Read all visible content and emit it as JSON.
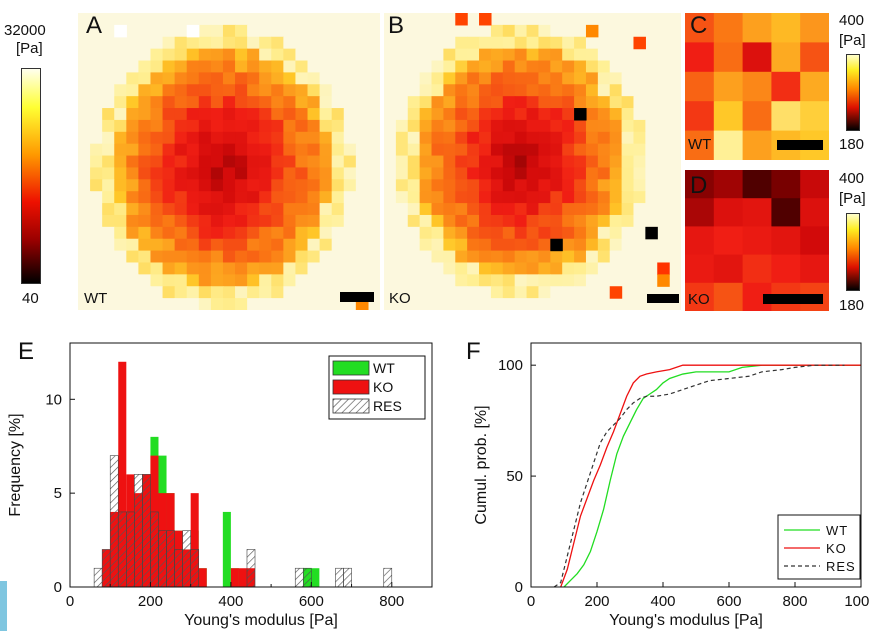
{
  "colorbar_main": {
    "top_label": "32000",
    "unit": "[Pa]",
    "bottom_label": "40"
  },
  "colorbar_small_c": {
    "top_label": "400",
    "unit": "[Pa]",
    "bottom_label": "180"
  },
  "colorbar_small_d": {
    "top_label": "400",
    "unit": "[Pa]",
    "bottom_label": "180"
  },
  "panels": {
    "a": {
      "letter": "A",
      "tag": "WT"
    },
    "b": {
      "letter": "B",
      "tag": "KO"
    },
    "c": {
      "letter": "C",
      "tag": "WT"
    },
    "d": {
      "letter": "D",
      "tag": "KO"
    },
    "e": {
      "letter": "E"
    },
    "f": {
      "letter": "F"
    }
  },
  "colors": {
    "wt": "#22dd22",
    "ko": "#ee1111",
    "res_hatch": "#555555"
  },
  "chart_data": [
    {
      "type": "bar",
      "panel": "E",
      "xlabel": "Young's modulus [Pa]",
      "ylabel": "Frequency [%]",
      "xlim": [
        0,
        900
      ],
      "ylim": [
        0,
        13
      ],
      "xticks": [
        0,
        200,
        400,
        600,
        800
      ],
      "yticks": [
        0,
        5,
        10
      ],
      "bin_width": 20,
      "legend": "top-right",
      "bin_centers": [
        70,
        90,
        110,
        130,
        150,
        170,
        190,
        210,
        230,
        250,
        270,
        290,
        310,
        330,
        350,
        370,
        390,
        410,
        430,
        450,
        470,
        490,
        510,
        530,
        550,
        570,
        590,
        610,
        630,
        650,
        670,
        690,
        710,
        730,
        750,
        770,
        790,
        810
      ],
      "series": [
        {
          "name": "WT",
          "values": [
            0,
            1,
            3,
            2,
            3,
            4,
            5,
            8,
            7,
            5,
            3,
            2,
            3,
            1,
            0,
            0,
            4,
            1,
            0,
            0,
            0,
            0,
            0,
            0,
            0,
            0,
            1,
            1,
            0,
            0,
            0,
            0,
            0,
            0,
            0,
            0,
            0,
            0
          ]
        },
        {
          "name": "KO",
          "values": [
            0,
            2,
            4,
            12,
            6,
            5,
            6,
            7,
            5,
            5,
            3,
            2,
            5,
            1,
            0,
            0,
            0,
            1,
            1,
            1,
            0,
            0,
            0,
            0,
            0,
            0,
            0,
            0,
            0,
            0,
            0,
            0,
            0,
            0,
            0,
            0,
            0,
            0
          ]
        },
        {
          "name": "RES",
          "values": [
            1,
            2,
            7,
            4,
            4,
            6,
            6,
            4,
            3,
            3,
            2,
            3,
            2,
            0,
            0,
            0,
            0,
            0,
            0,
            2,
            0,
            0,
            0,
            0,
            0,
            1,
            1,
            0,
            0,
            0,
            1,
            1,
            0,
            0,
            0,
            0,
            1,
            0
          ]
        }
      ]
    },
    {
      "type": "line",
      "panel": "F",
      "xlabel": "Young's modulus [Pa]",
      "ylabel": "Cumul. prob. [%]",
      "xlim": [
        0,
        1000
      ],
      "ylim": [
        0,
        110
      ],
      "xticks": [
        0,
        200,
        400,
        600,
        800,
        1000
      ],
      "yticks": [
        0,
        50,
        100
      ],
      "legend": "bottom-right",
      "series": [
        {
          "name": "WT",
          "x": [
            100,
            120,
            140,
            160,
            180,
            200,
            220,
            240,
            260,
            280,
            300,
            320,
            340,
            360,
            380,
            400,
            420,
            460,
            500,
            560,
            600,
            640,
            700,
            1000
          ],
          "y": [
            0,
            3,
            6,
            10,
            16,
            25,
            35,
            48,
            60,
            68,
            74,
            80,
            85,
            87,
            89,
            92,
            94,
            96,
            97,
            97,
            97,
            99,
            100,
            100
          ]
        },
        {
          "name": "KO",
          "x": [
            90,
            110,
            130,
            150,
            170,
            190,
            210,
            230,
            250,
            270,
            290,
            310,
            330,
            350,
            380,
            420,
            440,
            460,
            480,
            1000
          ],
          "y": [
            0,
            8,
            20,
            32,
            40,
            48,
            55,
            63,
            70,
            78,
            86,
            92,
            95,
            96,
            97,
            98,
            99,
            100,
            100,
            100
          ]
        },
        {
          "name": "RES",
          "x": [
            70,
            90,
            110,
            130,
            150,
            170,
            190,
            210,
            230,
            250,
            270,
            290,
            310,
            330,
            350,
            380,
            420,
            460,
            500,
            540,
            600,
            660,
            700,
            760,
            800,
            860,
            900,
            950
          ],
          "y": [
            0,
            2,
            14,
            26,
            38,
            47,
            56,
            65,
            70,
            73,
            76,
            80,
            83,
            85,
            86,
            86,
            87,
            89,
            91,
            93,
            94,
            95,
            97,
            98,
            99,
            100,
            100,
            100
          ]
        }
      ]
    }
  ]
}
